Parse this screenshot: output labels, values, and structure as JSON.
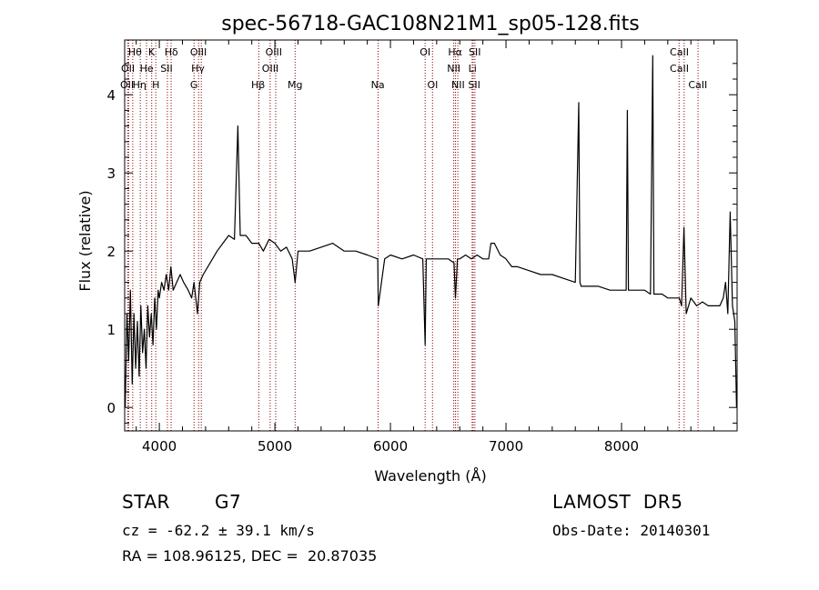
{
  "chart_data": {
    "type": "line",
    "title": "spec-56718-GAC108N21M1_sp05-128.fits",
    "xlabel": "Wavelength (Å)",
    "ylabel": "Flux (relative)",
    "xlim": [
      3700,
      9000
    ],
    "ylim": [
      -0.3,
      4.7
    ],
    "xticks": [
      4000,
      5000,
      6000,
      7000,
      8000
    ],
    "yticks": [
      0,
      1,
      2,
      3,
      4
    ],
    "grid": false,
    "series": [
      {
        "color": "#000000",
        "x": [
          3705,
          3720,
          3735,
          3750,
          3765,
          3780,
          3795,
          3810,
          3825,
          3840,
          3855,
          3870,
          3885,
          3900,
          3915,
          3930,
          3945,
          3960,
          3975,
          3990,
          4000,
          4020,
          4040,
          4060,
          4080,
          4100,
          4120,
          4150,
          4180,
          4210,
          4250,
          4280,
          4300,
          4330,
          4350,
          4380,
          4420,
          4460,
          4500,
          4550,
          4600,
          4650,
          4680,
          4700,
          4750,
          4800,
          4860,
          4900,
          4950,
          5000,
          5050,
          5100,
          5150,
          5175,
          5200,
          5250,
          5300,
          5400,
          5500,
          5600,
          5700,
          5800,
          5890,
          5895,
          5950,
          6000,
          6100,
          6200,
          6280,
          6300,
          6310,
          6320,
          6350,
          6400,
          6450,
          6500,
          6550,
          6563,
          6580,
          6600,
          6650,
          6700,
          6750,
          6800,
          6850,
          6870,
          6900,
          6950,
          7000,
          7050,
          7100,
          7200,
          7300,
          7400,
          7500,
          7600,
          7630,
          7640,
          7650,
          7700,
          7800,
          7900,
          8000,
          8040,
          8050,
          8060,
          8100,
          8150,
          8200,
          8250,
          8270,
          8280,
          8300,
          8350,
          8400,
          8450,
          8500,
          8520,
          8540,
          8560,
          8600,
          8650,
          8700,
          8750,
          8800,
          8850,
          8880,
          8900,
          8920,
          8940,
          8960,
          8980,
          8995
        ],
        "y": [
          0.0,
          1.2,
          0.6,
          1.5,
          0.3,
          1.2,
          0.5,
          1.1,
          0.4,
          1.3,
          0.7,
          1.0,
          0.5,
          1.3,
          0.9,
          1.2,
          0.8,
          1.4,
          1.0,
          1.5,
          1.4,
          1.6,
          1.5,
          1.7,
          1.5,
          1.8,
          1.5,
          1.6,
          1.7,
          1.6,
          1.5,
          1.4,
          1.6,
          1.2,
          1.6,
          1.7,
          1.8,
          1.9,
          2.0,
          2.1,
          2.2,
          2.15,
          3.6,
          2.2,
          2.2,
          2.1,
          2.1,
          2.0,
          2.15,
          2.1,
          2.0,
          2.05,
          1.9,
          1.6,
          2.0,
          2.0,
          2.0,
          2.05,
          2.1,
          2.0,
          2.0,
          1.95,
          1.9,
          1.3,
          1.9,
          1.95,
          1.9,
          1.95,
          1.9,
          0.8,
          1.9,
          1.9,
          1.9,
          1.9,
          1.9,
          1.9,
          1.85,
          1.4,
          1.9,
          1.9,
          1.95,
          1.9,
          1.95,
          1.9,
          1.9,
          2.1,
          2.1,
          1.95,
          1.9,
          1.8,
          1.8,
          1.75,
          1.7,
          1.7,
          1.65,
          1.6,
          3.9,
          1.6,
          1.55,
          1.55,
          1.55,
          1.5,
          1.5,
          1.5,
          3.8,
          1.5,
          1.5,
          1.5,
          1.5,
          1.45,
          4.5,
          1.45,
          1.45,
          1.45,
          1.4,
          1.4,
          1.4,
          1.3,
          2.3,
          1.2,
          1.4,
          1.3,
          1.35,
          1.3,
          1.3,
          1.3,
          1.4,
          1.6,
          1.2,
          2.5,
          1.3,
          1.1,
          0.0
        ]
      }
    ],
    "lines_red": [
      {
        "wave": 3727,
        "label": "OII"
      },
      {
        "wave": 3734,
        "label": "OII"
      },
      {
        "wave": 3770,
        "label": "Hθ"
      },
      {
        "wave": 3835,
        "label": "Hη"
      },
      {
        "wave": 3889,
        "label": "HeI"
      },
      {
        "wave": 3934,
        "label": "K"
      },
      {
        "wave": 3969,
        "label": "H"
      },
      {
        "wave": 4070,
        "label": "SII"
      },
      {
        "wave": 4102,
        "label": "Hδ"
      },
      {
        "wave": 4300,
        "label": "G"
      },
      {
        "wave": 4340,
        "label": "Hγ"
      },
      {
        "wave": 4363,
        "label": "OIII"
      },
      {
        "wave": 4861,
        "label": "Hβ"
      },
      {
        "wave": 4959,
        "label": "OIII"
      },
      {
        "wave": 5007,
        "label": "OIII"
      },
      {
        "wave": 5175,
        "label": "Mg"
      },
      {
        "wave": 5893,
        "label": "Na"
      },
      {
        "wave": 6300,
        "label": "OI"
      },
      {
        "wave": 6364,
        "label": "OI"
      },
      {
        "wave": 6548,
        "label": "NII"
      },
      {
        "wave": 6563,
        "label": "Hα"
      },
      {
        "wave": 6583,
        "label": "NII"
      },
      {
        "wave": 6707,
        "label": "Li"
      },
      {
        "wave": 6716,
        "label": "SII"
      },
      {
        "wave": 6731,
        "label": "SII"
      },
      {
        "wave": 8498,
        "label": "CaII"
      },
      {
        "wave": 8542,
        "label": "CaII"
      },
      {
        "wave": 8662,
        "label": "CaII"
      }
    ],
    "line_labels": [
      {
        "text": "Hθ",
        "row": 1,
        "wave": 3790
      },
      {
        "text": "K",
        "row": 1,
        "wave": 3932
      },
      {
        "text": "Hδ",
        "row": 1,
        "wave": 4104
      },
      {
        "text": "OIII",
        "row": 1,
        "wave": 4338
      },
      {
        "text": "OIII",
        "row": 1,
        "wave": 4990
      },
      {
        "text": "OI",
        "row": 1,
        "wave": 6300
      },
      {
        "text": "Hα",
        "row": 1,
        "wave": 6560
      },
      {
        "text": "SII",
        "row": 1,
        "wave": 6730
      },
      {
        "text": "CaII",
        "row": 1,
        "wave": 8500
      },
      {
        "text": "OII",
        "row": 2,
        "wave": 3728
      },
      {
        "text": "He",
        "row": 2,
        "wave": 3890
      },
      {
        "text": "SII",
        "row": 2,
        "wave": 4062
      },
      {
        "text": "Hγ",
        "row": 2,
        "wave": 4334
      },
      {
        "text": "OIII",
        "row": 2,
        "wave": 4960
      },
      {
        "text": "NII",
        "row": 2,
        "wave": 6548
      },
      {
        "text": "Li",
        "row": 2,
        "wave": 6710
      },
      {
        "text": "CaII",
        "row": 2,
        "wave": 8500
      },
      {
        "text": "OII",
        "row": 3,
        "wave": 3720
      },
      {
        "text": "Hη",
        "row": 3,
        "wave": 3828
      },
      {
        "text": "H",
        "row": 3,
        "wave": 3970
      },
      {
        "text": "G",
        "row": 3,
        "wave": 4300
      },
      {
        "text": "Hβ",
        "row": 3,
        "wave": 4855
      },
      {
        "text": "Mg",
        "row": 3,
        "wave": 5175
      },
      {
        "text": "Na",
        "row": 3,
        "wave": 5890
      },
      {
        "text": "OI",
        "row": 3,
        "wave": 6365
      },
      {
        "text": "NII",
        "row": 3,
        "wave": 6585
      },
      {
        "text": "SII",
        "row": 3,
        "wave": 6725
      },
      {
        "text": "CaII",
        "row": 3,
        "wave": 8660
      }
    ],
    "colors": {
      "spectrum": "#000000",
      "line_marker": "#8b0000",
      "axis": "#000000"
    }
  },
  "info": {
    "object_class": "STAR",
    "subclass": "G7",
    "survey": "LAMOST  DR5",
    "cz": "cz = -62.2 ± 39.1 km/s",
    "obs_date": "Obs-Date: 20140301",
    "radec": "RA = 108.96125, DEC =  20.87035"
  }
}
